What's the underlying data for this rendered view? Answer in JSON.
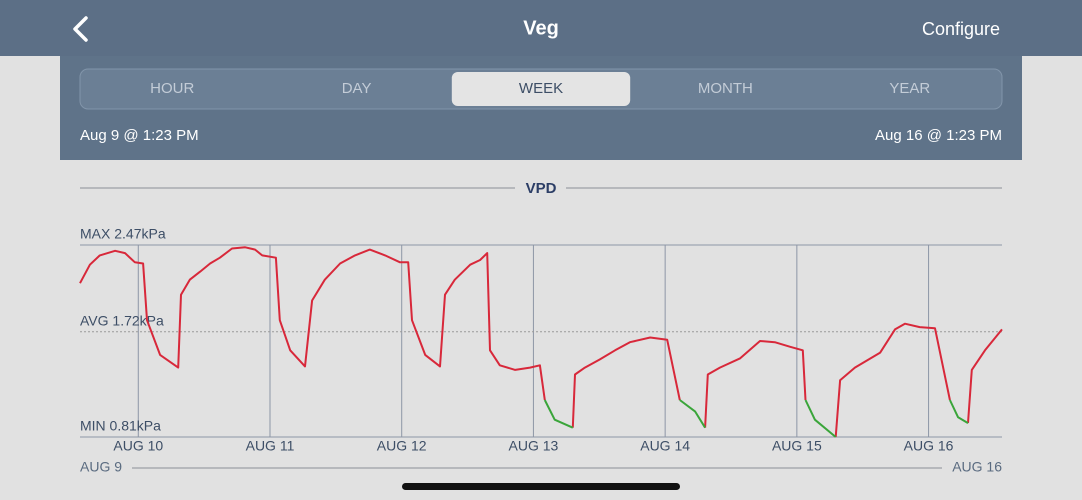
{
  "header": {
    "title": "Veg",
    "action": "Configure"
  },
  "tabs": {
    "items": [
      "HOUR",
      "DAY",
      "WEEK",
      "MONTH",
      "YEAR"
    ],
    "selected": "WEEK"
  },
  "range": {
    "start": "Aug 9 @ 1:23 PM",
    "end": "Aug 16 @ 1:23 PM"
  },
  "chart_data": {
    "type": "line",
    "title": "VPD",
    "x": [
      0,
      1.8,
      3.6,
      6.4,
      8.2,
      10.0,
      11.5,
      12.2,
      14.6,
      17.9,
      18.4,
      20.0,
      21.9,
      23.7,
      25.5,
      27.7,
      30.1,
      31.9,
      33.2,
      35.7,
      36.4,
      38.3,
      41.0,
      42.3,
      44.6,
      47.4,
      50.1,
      52.8,
      55.6,
      58.3,
      59.8,
      60.5,
      62.9,
      65.6,
      66.5,
      68.3,
      71.1,
      72.9,
      74.2,
      74.7,
      76.5,
      79.3,
      82.0,
      83.8,
      84.7,
      86.5,
      89.8,
      90.2,
      92.0,
      94.7,
      97.5,
      100.2,
      103.9,
      107.0,
      109.3,
      112.1,
      113.9,
      114.4,
      116.6,
      120.3,
      123.9,
      126.6,
      129.4,
      131.7,
      132.2,
      133.9,
      137.7,
      138.5,
      141.2,
      145.8,
      148.5,
      150.3,
      153.0,
      155.8,
      158.5,
      160.0,
      161.8,
      162.5,
      164.9,
      168.0
    ],
    "series": [
      {
        "color": "#d8283a",
        "values": [
          2.14,
          2.3,
          2.38,
          2.42,
          2.4,
          2.32,
          2.31,
          1.82,
          1.52,
          1.41,
          2.04,
          2.17,
          2.24,
          2.31,
          2.36,
          2.44,
          2.45,
          2.43,
          2.38,
          2.36,
          1.82,
          1.56,
          1.42,
          1.99,
          2.17,
          2.31,
          2.38,
          2.43,
          2.38,
          2.32,
          2.32,
          1.82,
          1.52,
          1.42,
          2.04,
          2.17,
          2.3,
          2.34,
          2.4,
          1.56,
          1.43,
          1.39,
          1.41,
          1.43,
          1.13,
          null,
          0.89,
          1.35,
          1.41,
          1.48,
          1.56,
          1.63,
          1.67,
          1.65,
          1.13,
          null,
          0.89,
          1.35,
          1.41,
          1.49,
          1.64,
          1.63,
          1.59,
          1.56,
          1.13,
          null,
          0.81,
          1.3,
          1.41,
          1.54,
          1.74,
          1.79,
          1.76,
          1.75,
          1.13,
          null,
          0.93,
          1.39,
          1.56,
          1.74
        ]
      },
      {
        "color": "#3aa53a",
        "values": [
          null,
          null,
          null,
          null,
          null,
          null,
          null,
          null,
          null,
          null,
          null,
          null,
          null,
          null,
          null,
          null,
          null,
          null,
          null,
          null,
          null,
          null,
          null,
          null,
          null,
          null,
          null,
          null,
          null,
          null,
          null,
          null,
          null,
          null,
          null,
          null,
          null,
          null,
          null,
          null,
          null,
          null,
          null,
          null,
          1.13,
          0.96,
          0.89,
          null,
          null,
          null,
          null,
          null,
          null,
          null,
          1.13,
          1.03,
          0.89,
          null,
          null,
          null,
          null,
          null,
          null,
          null,
          1.13,
          0.96,
          0.81,
          null,
          null,
          null,
          null,
          null,
          null,
          null,
          1.13,
          0.98,
          0.93,
          null,
          null,
          null
        ]
      }
    ],
    "xlim": [
      0,
      168
    ],
    "xticks": [
      {
        "value": 10.62,
        "label": "AUG 10"
      },
      {
        "value": 34.62,
        "label": "AUG 11"
      },
      {
        "value": 58.62,
        "label": "AUG 12"
      },
      {
        "value": 82.62,
        "label": "AUG 13"
      },
      {
        "value": 106.62,
        "label": "AUG 14"
      },
      {
        "value": 130.62,
        "label": "AUG 15"
      },
      {
        "value": 154.62,
        "label": "AUG 16"
      }
    ],
    "ylim": [
      0.81,
      2.47
    ],
    "yticks": [
      {
        "value": 2.47,
        "label": "MAX 2.47kPa"
      },
      {
        "value": 1.72,
        "label": "AVG 1.72kPa"
      },
      {
        "value": 0.81,
        "label": "MIN 0.81kPa"
      }
    ],
    "range_labels": [
      "AUG 9",
      "AUG 16"
    ]
  }
}
